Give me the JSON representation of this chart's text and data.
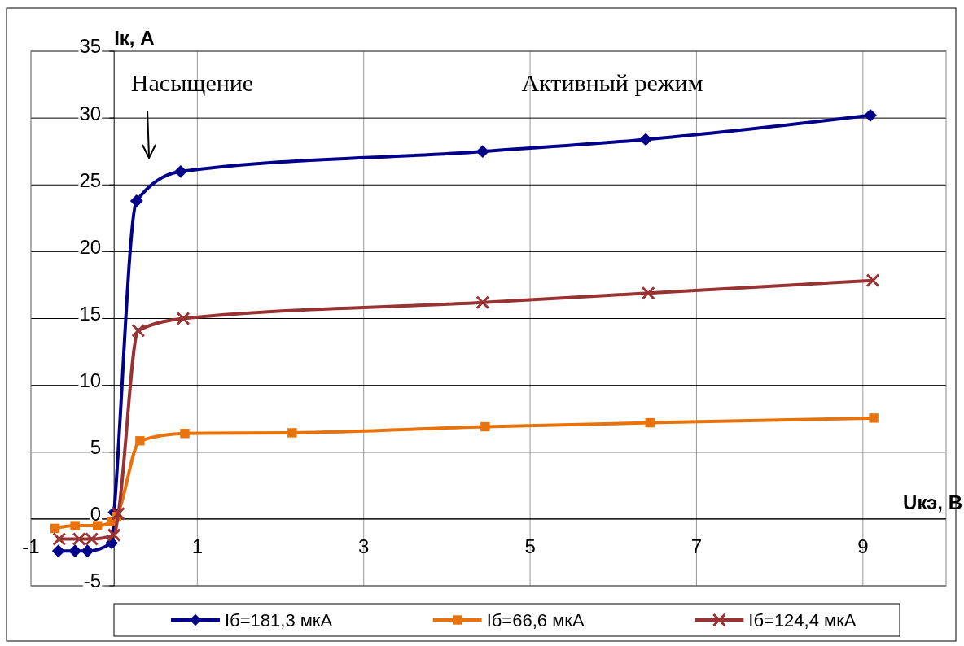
{
  "chart_data": {
    "type": "line",
    "xlabel": "Uкэ, В",
    "ylabel": "Iк, А",
    "annotations": [
      "Насыщение",
      "Активный режим"
    ],
    "series": [
      {
        "name": "Iб=181,3 мкА",
        "color": "#00008b",
        "marker": "diamond",
        "x": [
          -0.67,
          -0.47,
          -0.32,
          -0.03,
          0.0,
          0.27,
          0.8,
          4.43,
          6.39,
          9.09
        ],
        "values": [
          -2.4,
          -2.4,
          -2.4,
          -1.8,
          0.5,
          23.8,
          26.0,
          27.5,
          28.4,
          30.2
        ]
      },
      {
        "name": "Iб=66,6 мкА",
        "color": "#e8720c",
        "marker": "square",
        "x": [
          -0.71,
          -0.47,
          -0.2,
          -0.03,
          0.03,
          0.31,
          0.85,
          2.14,
          4.46,
          6.44,
          9.13
        ],
        "values": [
          -0.7,
          -0.5,
          -0.5,
          -0.2,
          0.2,
          5.85,
          6.4,
          6.45,
          6.9,
          7.2,
          7.55
        ]
      },
      {
        "name": "Iб=124,4 мкА",
        "color": "#993333",
        "marker": "cross",
        "x": [
          -0.66,
          -0.42,
          -0.27,
          0.0,
          0.05,
          0.29,
          0.83,
          4.43,
          6.42,
          9.12
        ],
        "values": [
          -1.5,
          -1.5,
          -1.5,
          -1.2,
          0.4,
          14.1,
          15.0,
          16.2,
          16.9,
          17.85
        ]
      }
    ],
    "xlim": [
      -1,
      10
    ],
    "xticks": [
      -1,
      1,
      3,
      5,
      7,
      9
    ],
    "ylim": [
      -5,
      35
    ],
    "yticks": [
      -5,
      0,
      5,
      10,
      15,
      20,
      25,
      30,
      35
    ],
    "grid": true,
    "legend": "bottom",
    "line_style": "solid"
  }
}
